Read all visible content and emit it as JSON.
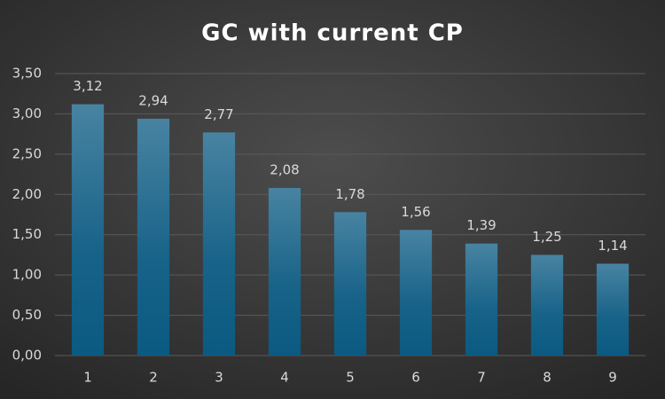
{
  "chart_data": {
    "type": "bar",
    "title": "GC with current CP",
    "categories": [
      "1",
      "2",
      "3",
      "4",
      "5",
      "6",
      "7",
      "8",
      "9"
    ],
    "values": [
      3.12,
      2.94,
      2.77,
      2.08,
      1.78,
      1.56,
      1.39,
      1.25,
      1.14
    ],
    "value_labels": [
      "3,12",
      "2,94",
      "2,77",
      "2,08",
      "1,78",
      "1,56",
      "1,39",
      "1,25",
      "1,14"
    ],
    "color": "#0b5a82",
    "ylim": [
      0,
      3.5
    ],
    "yticks": [
      {
        "value": 0,
        "label": "0,00"
      },
      {
        "value": 0.5,
        "label": "0,50"
      },
      {
        "value": 1,
        "label": "1,00"
      },
      {
        "value": 1.5,
        "label": "1,50"
      },
      {
        "value": 2,
        "label": "2,00"
      },
      {
        "value": 2.5,
        "label": "2,50"
      },
      {
        "value": 3,
        "label": "3,00"
      },
      {
        "value": 3.5,
        "label": "3,50"
      }
    ],
    "grid": true
  }
}
